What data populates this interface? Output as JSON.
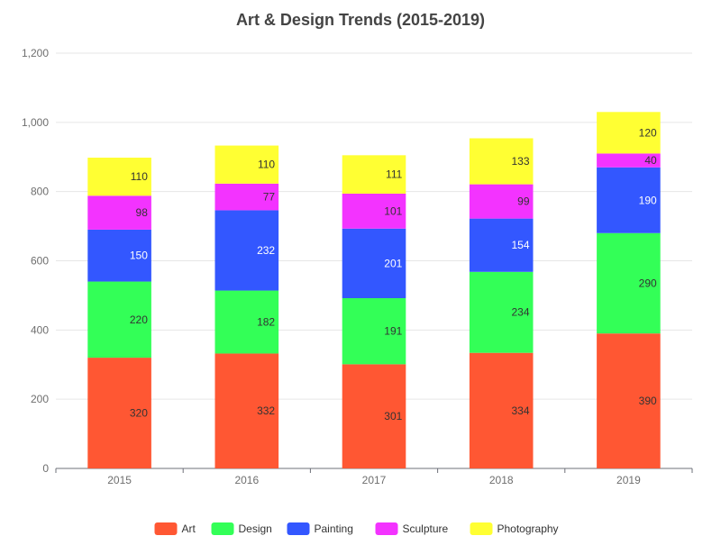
{
  "chart_data": {
    "type": "bar",
    "stacked": true,
    "title": "Art & Design Trends (2015-2019)",
    "xlabel": "",
    "ylabel": "",
    "categories": [
      "2015",
      "2016",
      "2017",
      "2018",
      "2019"
    ],
    "series": [
      {
        "name": "Art",
        "color": "#ff5733",
        "label_color": "#333333",
        "values": [
          320,
          332,
          301,
          334,
          390
        ]
      },
      {
        "name": "Design",
        "color": "#33ff57",
        "label_color": "#333333",
        "values": [
          220,
          182,
          191,
          234,
          290
        ]
      },
      {
        "name": "Painting",
        "color": "#3357ff",
        "label_color": "#ffffff",
        "values": [
          150,
          232,
          201,
          154,
          190
        ]
      },
      {
        "name": "Sculpture",
        "color": "#f333ff",
        "label_color": "#333333",
        "values": [
          98,
          77,
          101,
          99,
          40
        ]
      },
      {
        "name": "Photography",
        "color": "#ffff33",
        "label_color": "#333333",
        "values": [
          110,
          110,
          111,
          133,
          120
        ]
      }
    ],
    "ylim": [
      0,
      1200
    ],
    "yticks": [
      0,
      200,
      400,
      600,
      800,
      1000,
      1200
    ],
    "ytick_labels": [
      "0",
      "200",
      "400",
      "600",
      "800",
      "1,000",
      "1,200"
    ],
    "grid": true,
    "legend_position": "bottom",
    "data_labels": true
  }
}
